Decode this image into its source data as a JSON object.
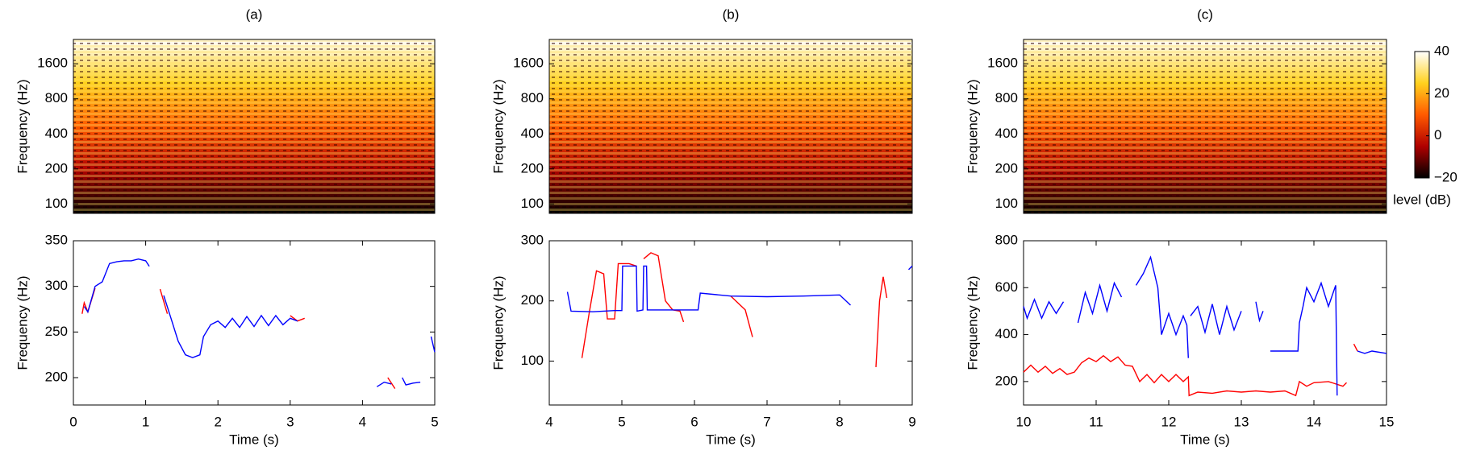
{
  "chart_data": [
    {
      "type": "heatmap",
      "title": "(a)",
      "ylabel": "Frequency (Hz)",
      "log_scale": true,
      "xlim": [
        0,
        5
      ],
      "ylim": [
        83,
        2590
      ],
      "yticks": [
        100,
        200,
        400,
        800,
        1600
      ],
      "colormap": [
        "#000000",
        "#b00000",
        "#ff5a00",
        "#ffd21e",
        "#ffffff"
      ]
    },
    {
      "type": "heatmap",
      "title": "(b)",
      "ylabel": "Frequency (Hz)",
      "log_scale": true,
      "xlim": [
        4,
        9
      ],
      "ylim": [
        83,
        2590
      ],
      "yticks": [
        100,
        200,
        400,
        800,
        1600
      ],
      "colormap": [
        "#000000",
        "#b00000",
        "#ff5a00",
        "#ffd21e",
        "#ffffff"
      ]
    },
    {
      "type": "heatmap",
      "title": "(c)",
      "ylabel": "Frequency (Hz)",
      "log_scale": true,
      "xlim": [
        10,
        15
      ],
      "ylim": [
        83,
        2590
      ],
      "yticks": [
        100,
        200,
        400,
        800,
        1600
      ],
      "colormap": [
        "#000000",
        "#b00000",
        "#ff5a00",
        "#ffd21e",
        "#ffffff"
      ]
    },
    {
      "type": "line",
      "xlabel": "Time (s)",
      "ylabel": "Frequency (Hz)",
      "xlim": [
        0,
        5
      ],
      "xticks": [
        0,
        1,
        2,
        3,
        4,
        5
      ],
      "ylim": [
        170,
        350
      ],
      "yticks": [
        200,
        250,
        300,
        350
      ],
      "series": [
        {
          "color": "#ff0000",
          "x": [
            0.12,
            0.15,
            0.2,
            0.3,
            null,
            1.2,
            1.3,
            null,
            3.0,
            3.1,
            3.2,
            null,
            4.35,
            4.45
          ],
          "values": [
            270,
            282,
            272,
            298,
            null,
            297,
            270,
            null,
            268,
            262,
            265,
            null,
            200,
            188
          ]
        },
        {
          "color": "#0000ff",
          "x": [
            0.15,
            0.2,
            0.3,
            0.4,
            0.5,
            0.6,
            0.7,
            0.8,
            0.9,
            1.0,
            1.05,
            null,
            1.25,
            1.35,
            1.45,
            1.55,
            1.65,
            1.75,
            1.8,
            1.9,
            2.0,
            2.1,
            2.2,
            2.3,
            2.4,
            2.5,
            2.6,
            2.7,
            2.8,
            2.9,
            3.0,
            3.1,
            null,
            4.2,
            4.3,
            4.4,
            null,
            4.55,
            4.6,
            4.7,
            4.8,
            null,
            4.95,
            5.0
          ],
          "values": [
            278,
            272,
            300,
            305,
            325,
            327,
            328,
            328,
            330,
            328,
            322,
            null,
            290,
            265,
            240,
            225,
            222,
            225,
            245,
            258,
            262,
            255,
            265,
            255,
            267,
            256,
            268,
            257,
            268,
            258,
            265,
            262,
            null,
            190,
            195,
            193,
            null,
            200,
            192,
            194,
            195,
            null,
            245,
            228
          ]
        }
      ]
    },
    {
      "type": "line",
      "xlabel": "Time (s)",
      "ylabel": "Frequency (Hz)",
      "xlim": [
        4,
        9
      ],
      "xticks": [
        4,
        5,
        6,
        7,
        8,
        9
      ],
      "ylim": [
        27,
        300
      ],
      "yticks": [
        100,
        200,
        300
      ],
      "series": [
        {
          "color": "#ff0000",
          "x": [
            4.45,
            4.55,
            4.65,
            4.75,
            4.8,
            4.9,
            4.95,
            5.1,
            5.2,
            null,
            5.3,
            5.4,
            5.5,
            5.6,
            5.7,
            5.8,
            5.85,
            null,
            6.5,
            6.7,
            6.8,
            null,
            8.5,
            8.55,
            8.6,
            8.65
          ],
          "values": [
            105,
            180,
            250,
            245,
            170,
            170,
            262,
            262,
            258,
            null,
            270,
            280,
            275,
            200,
            185,
            183,
            165,
            null,
            208,
            185,
            140,
            null,
            90,
            200,
            240,
            205
          ]
        },
        {
          "color": "#0000ff",
          "x": [
            4.25,
            4.3,
            4.6,
            4.9,
            5.0,
            5.01,
            5.2,
            5.21,
            5.29,
            5.3,
            5.34,
            5.35,
            5.8,
            6.05,
            6.08,
            6.5,
            7.0,
            7.5,
            8.0,
            8.15,
            null,
            8.95,
            9.0
          ],
          "values": [
            215,
            183,
            182,
            184,
            184,
            258,
            258,
            183,
            185,
            258,
            258,
            185,
            185,
            185,
            213,
            208,
            207,
            208,
            210,
            193,
            null,
            252,
            258
          ]
        }
      ]
    },
    {
      "type": "line",
      "xlabel": "Time (s)",
      "ylabel": "Frequency (Hz)",
      "xlim": [
        10,
        15
      ],
      "xticks": [
        10,
        11,
        12,
        13,
        14,
        15
      ],
      "ylim": [
        100,
        800
      ],
      "yticks": [
        200,
        400,
        600,
        800
      ],
      "series": [
        {
          "color": "#ff0000",
          "x": [
            10.0,
            10.1,
            10.2,
            10.3,
            10.4,
            10.5,
            10.6,
            10.7,
            10.8,
            10.9,
            11.0,
            11.1,
            11.2,
            11.3,
            11.4,
            11.5,
            11.6,
            11.7,
            11.8,
            11.9,
            12.0,
            12.1,
            12.2,
            12.27,
            12.28,
            12.4,
            12.6,
            12.8,
            13.0,
            13.2,
            13.4,
            13.6,
            13.75,
            13.8,
            13.9,
            14.0,
            14.2,
            14.4,
            14.45,
            null,
            14.55,
            14.6
          ],
          "values": [
            240,
            270,
            240,
            265,
            235,
            255,
            230,
            240,
            280,
            300,
            285,
            310,
            285,
            305,
            270,
            265,
            200,
            230,
            195,
            230,
            200,
            230,
            200,
            220,
            140,
            155,
            150,
            160,
            155,
            160,
            155,
            160,
            140,
            200,
            180,
            195,
            200,
            180,
            195,
            null,
            360,
            330
          ]
        },
        {
          "color": "#0000ff",
          "x": [
            10.0,
            10.05,
            10.15,
            10.25,
            10.35,
            10.45,
            10.55,
            null,
            10.75,
            10.85,
            10.95,
            11.05,
            11.15,
            11.25,
            11.35,
            null,
            11.55,
            11.65,
            11.75,
            11.85,
            11.9,
            12.0,
            12.1,
            12.2,
            12.25,
            12.27,
            null,
            12.3,
            12.4,
            12.5,
            12.6,
            12.7,
            12.8,
            12.9,
            13.0,
            null,
            13.2,
            13.25,
            13.3,
            null,
            13.4,
            13.6,
            13.78,
            13.8,
            13.85,
            13.9,
            14.0,
            14.1,
            14.2,
            14.3,
            14.32,
            null,
            14.6,
            14.7,
            14.8,
            15.0
          ],
          "values": [
            520,
            470,
            550,
            470,
            540,
            490,
            540,
            null,
            450,
            580,
            490,
            610,
            500,
            620,
            560,
            null,
            610,
            660,
            730,
            600,
            400,
            490,
            400,
            480,
            440,
            300,
            null,
            480,
            520,
            410,
            530,
            400,
            520,
            420,
            500,
            null,
            540,
            460,
            500,
            null,
            330,
            330,
            330,
            450,
            520,
            600,
            540,
            620,
            520,
            610,
            140,
            null,
            330,
            320,
            330,
            320
          ]
        }
      ]
    },
    {
      "type": "colorbar",
      "label": "level (dB)",
      "ylim": [
        -20,
        40
      ],
      "yticks": [
        {
          "value": -20,
          "label": "−20"
        },
        0,
        20,
        40
      ],
      "colormap": [
        "#000000",
        "#b00000",
        "#ff5a00",
        "#ffd21e",
        "#ffffff"
      ]
    }
  ]
}
